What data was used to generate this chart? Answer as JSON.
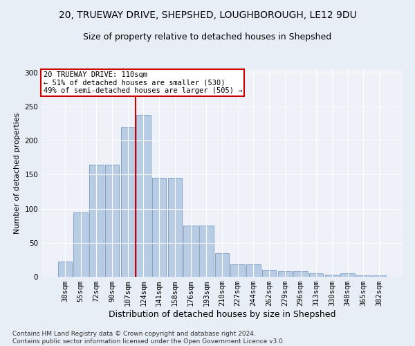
{
  "title1": "20, TRUEWAY DRIVE, SHEPSHED, LOUGHBOROUGH, LE12 9DU",
  "title2": "Size of property relative to detached houses in Shepshed",
  "xlabel": "Distribution of detached houses by size in Shepshed",
  "ylabel": "Number of detached properties",
  "categories": [
    "38sqm",
    "55sqm",
    "72sqm",
    "90sqm",
    "107sqm",
    "124sqm",
    "141sqm",
    "158sqm",
    "176sqm",
    "193sqm",
    "210sqm",
    "227sqm",
    "244sqm",
    "262sqm",
    "279sqm",
    "296sqm",
    "313sqm",
    "330sqm",
    "348sqm",
    "365sqm",
    "382sqm"
  ],
  "values": [
    22,
    95,
    165,
    165,
    220,
    238,
    145,
    145,
    75,
    75,
    35,
    18,
    18,
    10,
    8,
    8,
    5,
    3,
    5,
    2,
    2
  ],
  "bar_color": "#b8cce4",
  "bar_edge_color": "#7399c6",
  "annotation_line1": "20 TRUEWAY DRIVE: 110sqm",
  "annotation_line2": "← 51% of detached houses are smaller (530)",
  "annotation_line3": "49% of semi-detached houses are larger (505) →",
  "annotation_box_color": "#ffffff",
  "annotation_box_edge": "#cc0000",
  "vline_color": "#cc0000",
  "vline_x": 4.5,
  "ylim": [
    0,
    305
  ],
  "yticks": [
    0,
    50,
    100,
    150,
    200,
    250,
    300
  ],
  "footer": "Contains HM Land Registry data © Crown copyright and database right 2024.\nContains public sector information licensed under the Open Government Licence v3.0.",
  "bg_color": "#e8eef5",
  "plot_bg_color": "#eef2f8",
  "title1_fontsize": 10,
  "title2_fontsize": 9,
  "xlabel_fontsize": 9,
  "ylabel_fontsize": 8,
  "tick_fontsize": 7.5,
  "annot_fontsize": 7.5,
  "footer_fontsize": 6.5
}
